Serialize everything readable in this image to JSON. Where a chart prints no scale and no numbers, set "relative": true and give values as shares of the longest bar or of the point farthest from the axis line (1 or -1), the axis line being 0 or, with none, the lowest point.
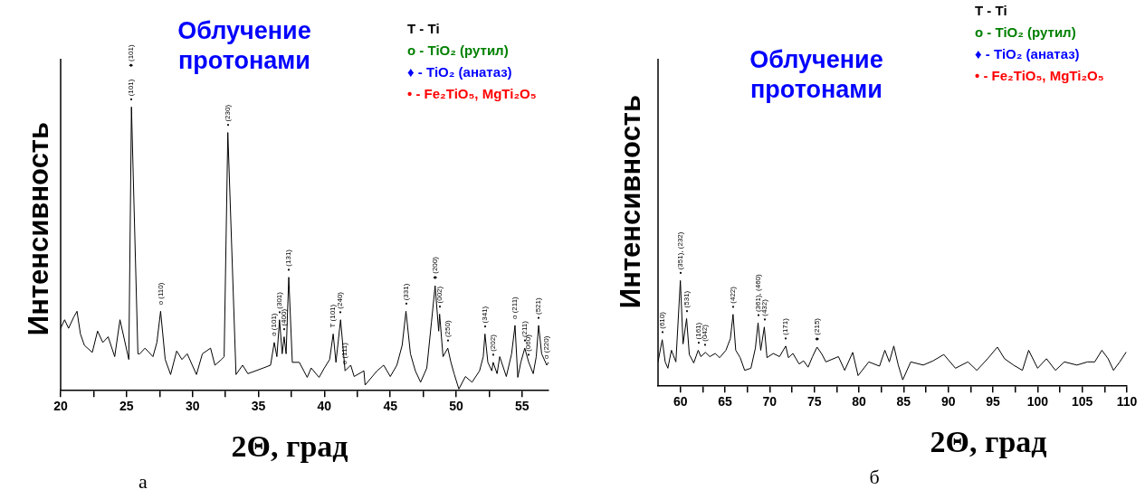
{
  "chart_data": [
    {
      "type": "line",
      "title": "Облучение протонами",
      "xlabel": "2Θ, град",
      "ylabel": "Интенсивность",
      "subtitle": "а",
      "relative": true,
      "legend": false,
      "color": "#000000",
      "xlim": [
        20,
        57
      ],
      "xticks": [
        20,
        {
          "value": 22.5,
          "label": null
        },
        25,
        {
          "value": 27.5,
          "label": null
        },
        30,
        {
          "value": 32.5,
          "label": null
        },
        35,
        {
          "value": 37.5,
          "label": null
        },
        40,
        {
          "value": 42.5,
          "label": null
        },
        45,
        {
          "value": 47.5,
          "label": null
        },
        50,
        {
          "value": 52.5,
          "label": null
        },
        55
      ],
      "x": [
        20.0,
        20.3,
        20.6,
        21.0,
        21.24,
        21.5,
        21.8,
        22.4,
        22.8,
        23.2,
        23.6,
        24.1,
        24.5,
        25.17,
        25.37,
        25.86,
        26.0,
        26.4,
        27.0,
        27.3,
        27.58,
        27.93,
        28.34,
        28.8,
        29.2,
        29.6,
        30.3,
        30.75,
        31.37,
        31.7,
        32.2,
        32.4,
        32.68,
        33.3,
        33.8,
        34.2,
        35.37,
        35.92,
        36.2,
        36.4,
        36.6,
        36.8,
        36.95,
        37.1,
        37.3,
        37.57,
        38.1,
        38.7,
        39.0,
        39.6,
        40.0,
        40.4,
        40.67,
        40.88,
        41.23,
        41.57,
        42.0,
        42.26,
        43.0,
        43.09,
        44.0,
        44.5,
        45.0,
        45.5,
        45.9,
        46.19,
        46.53,
        46.9,
        47.3,
        47.77,
        48.12,
        48.4,
        48.67,
        48.74,
        49.0,
        49.36,
        49.6,
        49.84,
        50.2,
        50.7,
        51.2,
        51.77,
        52.05,
        52.18,
        52.4,
        52.7,
        52.8,
        53.1,
        53.3,
        53.8,
        54.2,
        54.46,
        54.67,
        54.9,
        55.2,
        55.5,
        55.84,
        56.07,
        56.25,
        56.48,
        56.87,
        57.0
      ],
      "values": [
        0.22,
        0.25,
        0.22,
        0.26,
        0.28,
        0.2,
        0.16,
        0.135,
        0.21,
        0.17,
        0.19,
        0.12,
        0.25,
        0.11,
        1.0,
        0.13,
        0.13,
        0.15,
        0.12,
        0.17,
        0.28,
        0.11,
        0.057,
        0.14,
        0.11,
        0.13,
        0.057,
        0.13,
        0.15,
        0.09,
        0.11,
        0.12,
        0.91,
        0.057,
        0.09,
        0.06,
        0.08,
        0.09,
        0.17,
        0.12,
        0.25,
        0.13,
        0.19,
        0.13,
        0.4,
        0.1,
        0.1,
        0.047,
        0.08,
        0.047,
        0.08,
        0.11,
        0.2,
        0.1,
        0.25,
        0.07,
        0.09,
        0.05,
        0.07,
        0.02,
        0.07,
        0.09,
        0.05,
        0.09,
        0.16,
        0.28,
        0.13,
        0.07,
        0.03,
        0.08,
        0.24,
        0.37,
        0.21,
        0.27,
        0.12,
        0.15,
        0.1,
        0.06,
        0.006,
        0.05,
        0.03,
        0.07,
        0.12,
        0.2,
        0.1,
        0.07,
        0.1,
        0.06,
        0.12,
        0.05,
        0.13,
        0.23,
        0.047,
        0.1,
        0.15,
        0.1,
        0.06,
        0.12,
        0.23,
        0.13,
        0.09,
        0.1
      ],
      "annotations": [
        "T - Ti",
        "o - TiO₂ (рутил)",
        "♦ - TiO₂ (анатаз)",
        "• - Fe₂TiO₅, MgTi₂O₅",
        {
          "text": "• (101)      ♦ (101)",
          "x": 25.37,
          "y": 1.0
        },
        {
          "text": "o (110)",
          "x": 27.58,
          "y": 0.28
        },
        {
          "text": "• (230)",
          "x": 32.68,
          "y": 0.91
        },
        {
          "text": "o (101)",
          "x": 36.2,
          "y": 0.17
        },
        {
          "text": "• (301)",
          "x": 36.6,
          "y": 0.25
        },
        {
          "text": "• (400)",
          "x": 36.95,
          "y": 0.19
        },
        {
          "text": "• (131)",
          "x": 37.3,
          "y": 0.4
        },
        {
          "text": "T (101)",
          "x": 40.67,
          "y": 0.2
        },
        {
          "text": "• (240)",
          "x": 41.23,
          "y": 0.25
        },
        {
          "text": "o (111)",
          "x": 41.57,
          "y": 0.07
        },
        {
          "text": "• (331)",
          "x": 46.19,
          "y": 0.28
        },
        {
          "text": "♦ (200)",
          "x": 48.4,
          "y": 0.37
        },
        {
          "text": "• (002)",
          "x": 48.74,
          "y": 0.27
        },
        {
          "text": "• (250)",
          "x": 49.36,
          "y": 0.15
        },
        {
          "text": "• (341)",
          "x": 52.18,
          "y": 0.2
        },
        {
          "text": "• (202)",
          "x": 52.8,
          "y": 0.1
        },
        {
          "text": "o (211)",
          "x": 54.46,
          "y": 0.23
        },
        {
          "text": "• (211)",
          "x": 55.2,
          "y": 0.15
        },
        {
          "text": "• (060)",
          "x": 55.5,
          "y": 0.1
        },
        {
          "text": "• (521)",
          "x": 56.25,
          "y": 0.23
        },
        {
          "text": "o (220)",
          "x": 56.87,
          "y": 0.09
        }
      ]
    },
    {
      "type": "line",
      "title": "Облучение протонами",
      "xlabel": "2Θ, град",
      "ylabel": "Интенсивность",
      "subtitle": "б",
      "relative": true,
      "legend": false,
      "color": "#000000",
      "xlim": [
        57.5,
        110
      ],
      "xticks": [
        60,
        {
          "value": 62.5,
          "label": null
        },
        65,
        {
          "value": 67.5,
          "label": null
        },
        70,
        {
          "value": 72.5,
          "label": null
        },
        75,
        {
          "value": 77.5,
          "label": null
        },
        80,
        {
          "value": 82.5,
          "label": null
        },
        85,
        {
          "value": 87.5,
          "label": null
        },
        90,
        {
          "value": 92.5,
          "label": null
        },
        95,
        {
          "value": 97.5,
          "label": null
        },
        100,
        {
          "value": 102.5,
          "label": null
        },
        105,
        {
          "value": 107.5,
          "label": null
        },
        110
      ],
      "x": [
        57.5,
        57.97,
        58.3,
        58.6,
        59.0,
        59.5,
        60.0,
        60.3,
        60.7,
        61.0,
        61.5,
        62.0,
        62.3,
        62.8,
        63.3,
        63.9,
        64.4,
        65.1,
        65.6,
        65.9,
        66.2,
        66.7,
        67.2,
        67.9,
        68.4,
        68.7,
        69.0,
        69.4,
        69.7,
        70.4,
        71.1,
        71.8,
        72.1,
        72.6,
        73.3,
        73.8,
        74.3,
        74.8,
        75.3,
        75.8,
        76.3,
        77.7,
        78.4,
        79.3,
        79.9,
        81.1,
        82.3,
        82.9,
        83.4,
        83.9,
        84.4,
        84.9,
        85.8,
        87.2,
        88.3,
        89.5,
        90.8,
        92.2,
        93.2,
        94.4,
        95.5,
        96.3,
        97.3,
        98.3,
        99.0,
        100.0,
        101.0,
        102.0,
        103.0,
        104.4,
        105.6,
        106.4,
        107.2,
        107.9,
        108.5,
        109.2,
        109.9
      ],
      "values": [
        0.23,
        0.44,
        0.23,
        0.17,
        0.34,
        0.23,
        1.0,
        0.4,
        0.64,
        0.3,
        0.22,
        0.34,
        0.28,
        0.32,
        0.28,
        0.31,
        0.27,
        0.34,
        0.45,
        0.68,
        0.34,
        0.27,
        0.15,
        0.17,
        0.36,
        0.6,
        0.34,
        0.56,
        0.27,
        0.31,
        0.28,
        0.38,
        0.27,
        0.31,
        0.21,
        0.24,
        0.18,
        0.28,
        0.37,
        0.31,
        0.23,
        0.28,
        0.15,
        0.32,
        0.1,
        0.23,
        0.19,
        0.34,
        0.23,
        0.38,
        0.2,
        0.06,
        0.23,
        0.2,
        0.24,
        0.3,
        0.17,
        0.23,
        0.15,
        0.26,
        0.37,
        0.26,
        0.2,
        0.15,
        0.34,
        0.17,
        0.26,
        0.15,
        0.23,
        0.2,
        0.23,
        0.23,
        0.34,
        0.26,
        0.15,
        0.23,
        0.32
      ],
      "annotations": [
        "T - Ti",
        "o - TiO₂ (рутил)",
        "♦ - TiO₂ (анатаз)",
        "• - Fe₂TiO₅, MgTi₂O₅",
        {
          "text": "• (610)",
          "x": 57.97,
          "y": 0.44
        },
        {
          "text": "• (351), (232)",
          "x": 60.0,
          "y": 1.0
        },
        {
          "text": "• (531)",
          "x": 60.7,
          "y": 0.64
        },
        {
          "text": "• (161)",
          "x": 62.0,
          "y": 0.34
        },
        {
          "text": "• (042)",
          "x": 62.8,
          "y": 0.32
        },
        {
          "text": "• (422)",
          "x": 65.9,
          "y": 0.68
        },
        {
          "text": "• (361), (460)",
          "x": 68.7,
          "y": 0.6
        },
        {
          "text": "• (432)",
          "x": 69.4,
          "y": 0.56
        },
        {
          "text": "• (171)",
          "x": 71.8,
          "y": 0.38
        },
        {
          "text": "♦ (215)",
          "x": 75.3,
          "y": 0.37
        }
      ]
    }
  ]
}
